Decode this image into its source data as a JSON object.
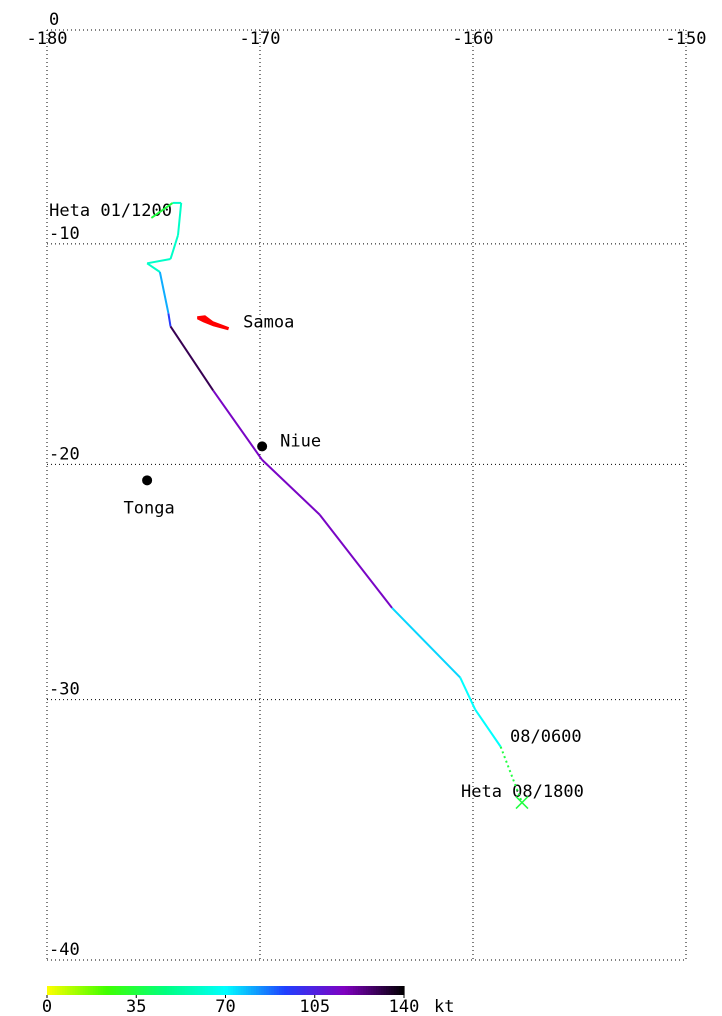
{
  "chart_data": {
    "type": "track",
    "projection": "mercator",
    "xlim": [
      -180,
      -150
    ],
    "xticks": [
      -180,
      -170,
      -160,
      -150
    ],
    "ylim": [
      -40,
      0
    ],
    "yticks": [
      0,
      -10,
      -20,
      -30,
      -40
    ],
    "grid": true,
    "track": {
      "lon": [
        -175.1,
        -174.1,
        -173.7,
        -173.85,
        -174.2,
        -175.3,
        -174.7,
        -174.3,
        -174.2,
        -172.2,
        -169.9,
        -167.2,
        -163.8,
        -160.6,
        -159.9,
        -158.7,
        -157.7
      ],
      "lat": [
        -8.8,
        -8.1,
        -8.1,
        -9.6,
        -10.7,
        -10.9,
        -11.3,
        -13.2,
        -13.8,
        -16.7,
        -19.8,
        -22.2,
        -26.2,
        -29.1,
        -30.4,
        -31.9,
        -34.1
      ],
      "wind": [
        35,
        60,
        60,
        60,
        60,
        60,
        80,
        95,
        130,
        115,
        115,
        115,
        75,
        70,
        70,
        35,
        35
      ]
    },
    "annotations": [
      "Heta 01/1200",
      "08/0600",
      "Heta 08/1800"
    ],
    "places": [
      {
        "name": "Samoa",
        "lon": -172.2,
        "lat": -13.7,
        "color": "#ff0000"
      },
      {
        "name": "Niue",
        "lon": -169.9,
        "lat": -19.2,
        "color": "#000000"
      },
      {
        "name": "Tonga",
        "lon": -175.3,
        "lat": -20.7,
        "color": "#000000"
      }
    ],
    "colorbar": {
      "lim": [
        0,
        140
      ],
      "ticks": [
        0,
        35,
        70,
        105,
        140
      ],
      "unit": "kt",
      "colors": [
        "#ffff00",
        "#40ff00",
        "#00ff80",
        "#00ffff",
        "#2040ff",
        "#8000c0",
        "#000000"
      ]
    }
  }
}
